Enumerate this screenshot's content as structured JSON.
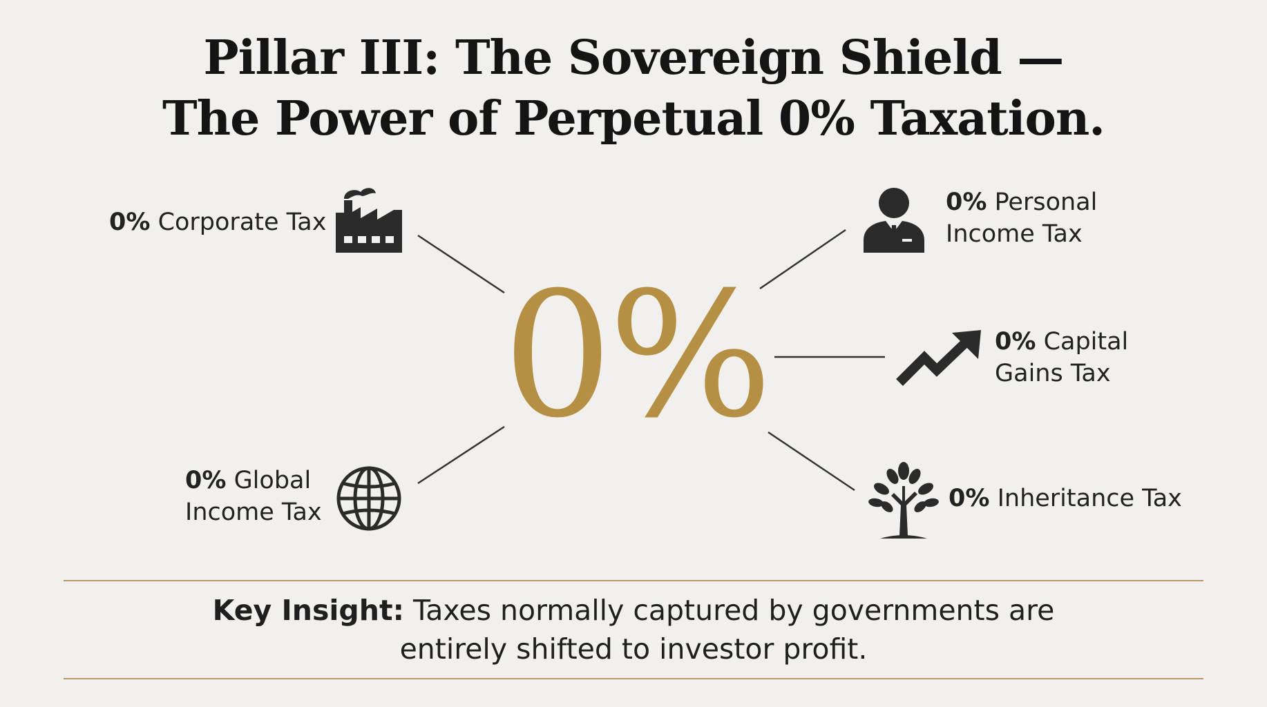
{
  "title": {
    "line1": "Pillar III: The Sovereign Shield —",
    "line2": "The Power of Perpetual 0% Taxation."
  },
  "center": {
    "value": "0%"
  },
  "items": {
    "corporate": {
      "pct": "0%",
      "text": "Corporate Tax",
      "icon": "factory-icon"
    },
    "personal": {
      "pct": "0%",
      "line1": "Personal",
      "line2": "Income Tax",
      "icon": "businessman-icon"
    },
    "capital": {
      "pct": "0%",
      "line1": "Capital",
      "line2": "Gains Tax",
      "icon": "trend-up-arrow-icon"
    },
    "global": {
      "pct": "0%",
      "line1": "Global",
      "line2": "Income Tax",
      "icon": "globe-icon"
    },
    "inheritance": {
      "pct": "0%",
      "text": "Inheritance Tax",
      "icon": "tree-icon"
    }
  },
  "insight": {
    "key": "Key Insight:",
    "line1": "Taxes normally captured by governments are",
    "line2": "entirely shifted to investor profit."
  },
  "colors": {
    "accent": "#b58f43",
    "rule": "#b59a5e",
    "background": "#f1f0ec",
    "ink": "#2b2b2b"
  }
}
